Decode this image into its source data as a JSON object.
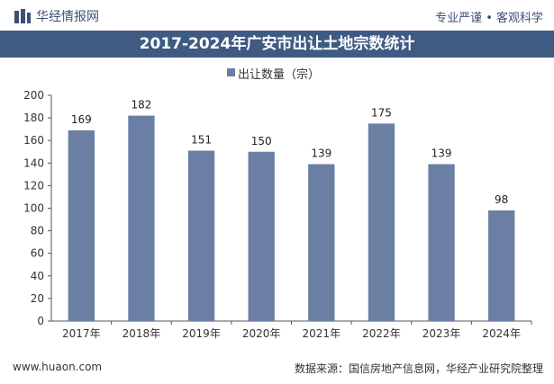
{
  "header": {
    "brand": "华经情报网",
    "tagline": "专业严谨 • 客观科学"
  },
  "title": "2017-2024年广安市出让土地宗数统计",
  "footer": {
    "url": "www.huaon.com",
    "source": "数据来源：国信房地产信息网，华经产业研究院整理"
  },
  "colors": {
    "bar": "#6b7fa5",
    "title_bg": "#3f5b84"
  },
  "chart_data": {
    "type": "bar",
    "title": "2017-2024年广安市出让土地宗数统计",
    "categories": [
      "2017年",
      "2018年",
      "2019年",
      "2020年",
      "2021年",
      "2022年",
      "2023年",
      "2024年"
    ],
    "series": [
      {
        "name": "出让数量（宗）",
        "values": [
          169,
          182,
          151,
          150,
          139,
          175,
          139,
          98
        ]
      }
    ],
    "ylim": [
      0,
      200
    ],
    "yticks": [
      0,
      20,
      40,
      60,
      80,
      100,
      120,
      140,
      160,
      180,
      200
    ],
    "grid": false,
    "legend": "top-center",
    "data_labels": true
  }
}
